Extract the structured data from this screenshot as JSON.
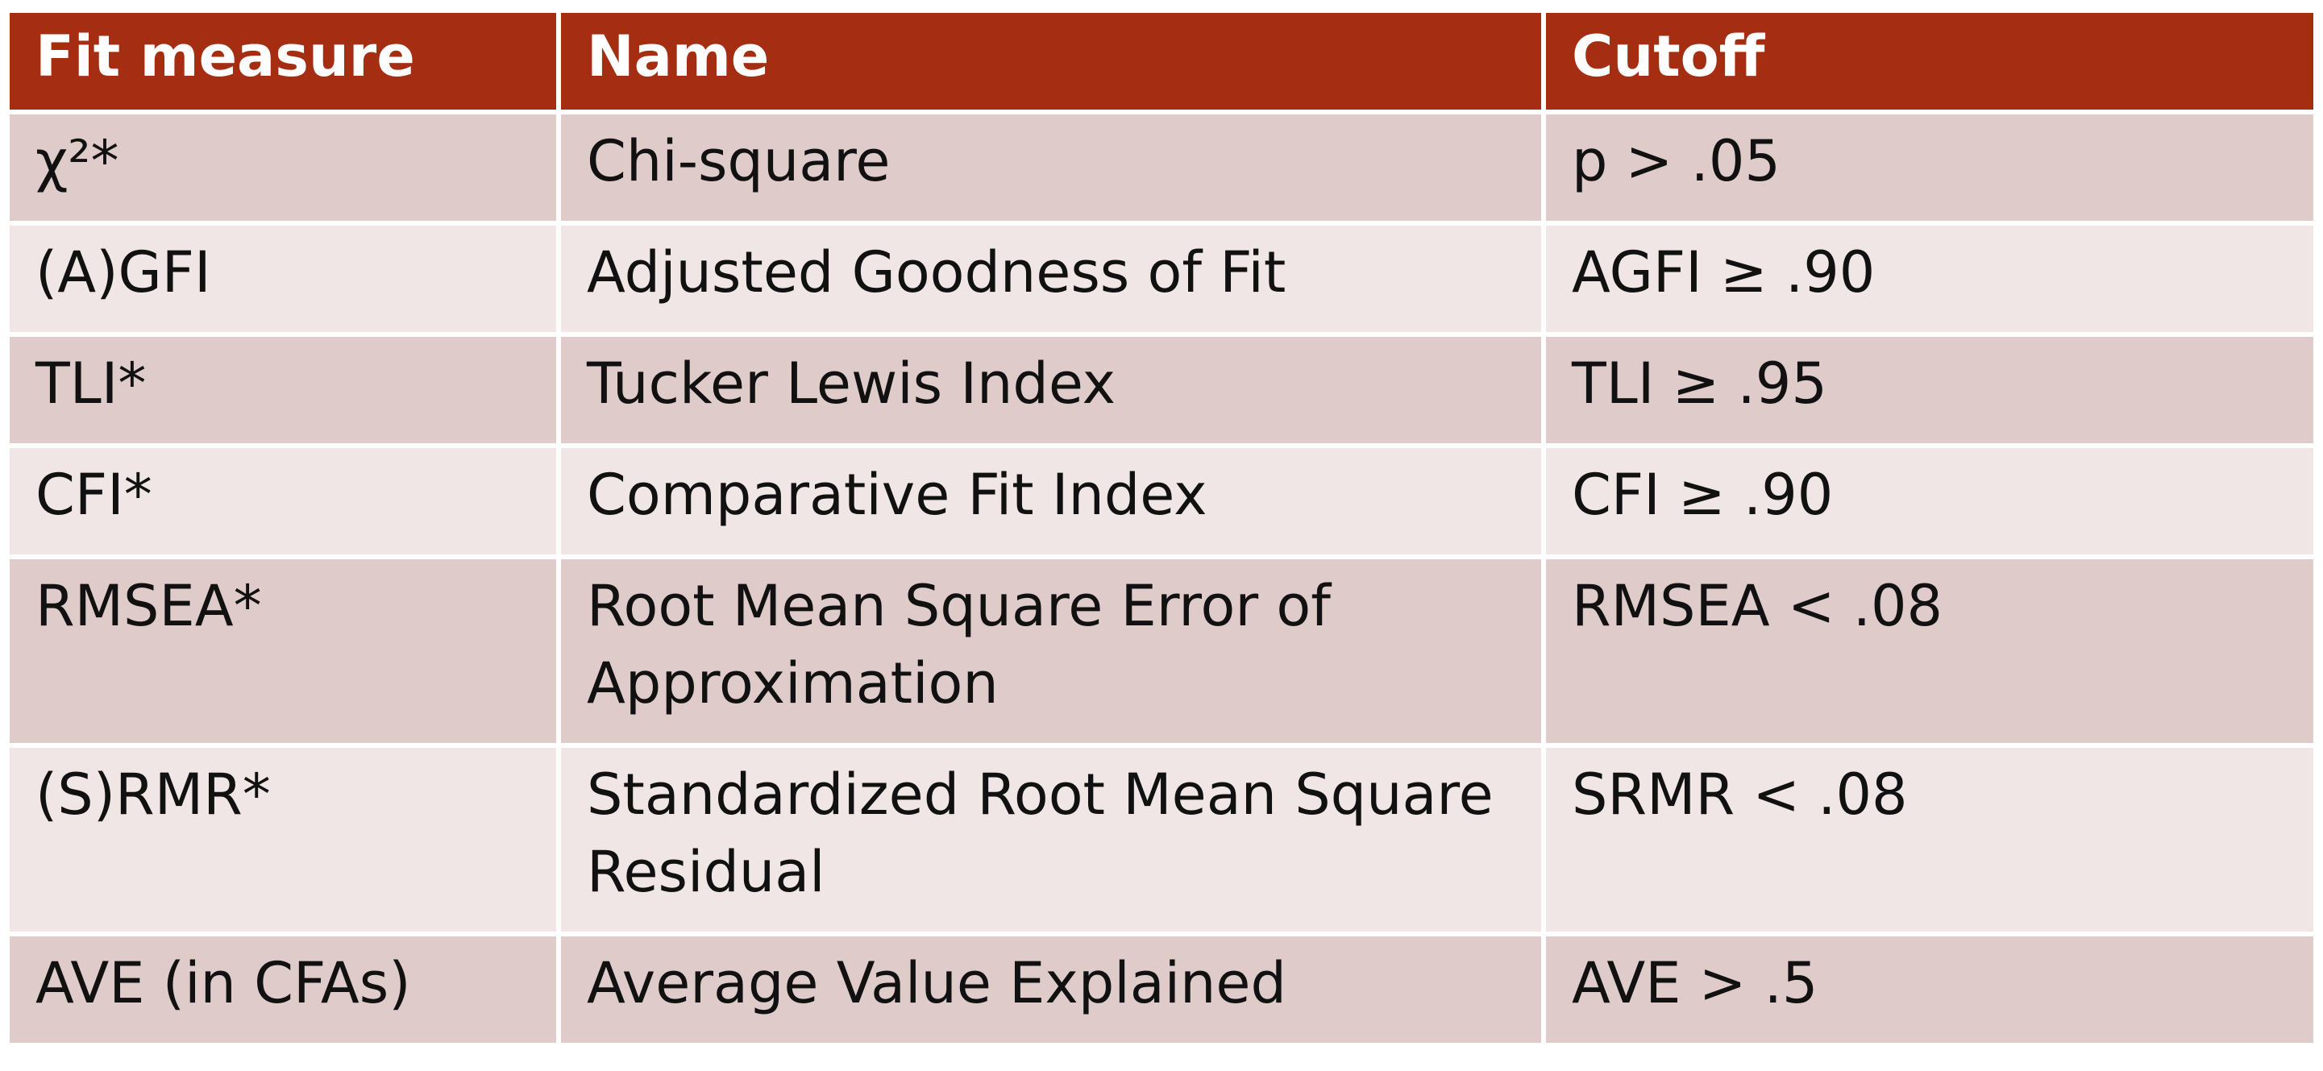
{
  "table": {
    "header": [
      "Fit measure",
      "Name",
      "Cutoff"
    ],
    "rows": [
      [
        "χ²*",
        "Chi-square",
        "p > .05"
      ],
      [
        "(A)GFI",
        "Adjusted Goodness of Fit",
        "AGFI ≥ .90"
      ],
      [
        "TLI*",
        "Tucker Lewis Index",
        "TLI ≥ .95"
      ],
      [
        "CFI*",
        "Comparative Fit Index",
        "CFI ≥ .90"
      ],
      [
        "RMSEA*",
        "Root Mean Square Error of Approximation",
        "RMSEA < .08"
      ],
      [
        "(S)RMR*",
        "Standardized Root Mean Square Residual",
        "SRMR < .08"
      ],
      [
        "AVE (in CFAs)",
        "Average Value Explained",
        "AVE > .5"
      ]
    ]
  }
}
